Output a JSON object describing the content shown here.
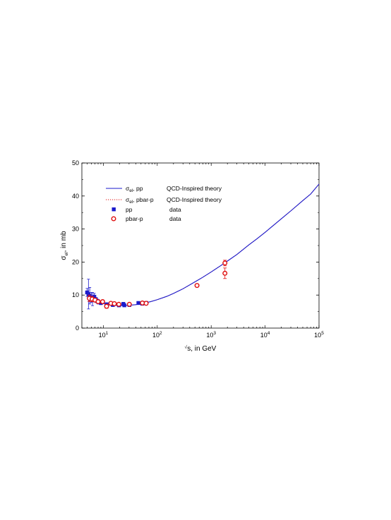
{
  "colors": {
    "pp": "#1a1acc",
    "pbarp": "#e01010",
    "axis": "#000000"
  },
  "chart_data": {
    "type": "scatter",
    "title": "",
    "xscale": "log",
    "xlim": [
      4,
      100000
    ],
    "ylim": [
      0,
      50
    ],
    "yticks": [
      0,
      10,
      20,
      30,
      40,
      50
    ],
    "xticks": [
      {
        "value": 10,
        "base": "10",
        "exp": "1"
      },
      {
        "value": 100,
        "base": "10",
        "exp": "2"
      },
      {
        "value": 1000,
        "base": "10",
        "exp": "3"
      },
      {
        "value": 10000,
        "base": "10",
        "exp": "4"
      },
      {
        "value": 100000,
        "base": "10",
        "exp": "5"
      }
    ],
    "xlabel": {
      "root": "√",
      "main": "s, in GeV"
    },
    "ylabel": {
      "sigma": "σ",
      "sub": "el",
      "rest": ", in mb"
    },
    "legend": {
      "placement": "upper-left",
      "entries": [
        {
          "sigma": "σ",
          "sub": "el",
          "label": ",  pp",
          "desc": "QCD-Inspired theory",
          "style": "solid-line",
          "color_key": "pp"
        },
        {
          "sigma": "σ",
          "sub": "el",
          "label": ",  pbar-p",
          "desc": "QCD-Inspired theory",
          "style": "dotted-line",
          "color_key": "pbarp"
        },
        {
          "sigma": "",
          "sub": "",
          "label": "pp",
          "desc": "data",
          "style": "square",
          "color_key": "pp"
        },
        {
          "sigma": "",
          "sub": "",
          "label": "pbar-p",
          "desc": "data",
          "style": "circle",
          "color_key": "pbarp"
        }
      ]
    },
    "theory_pp": {
      "x": [
        5,
        6,
        7,
        8,
        10,
        13,
        17,
        22,
        30,
        40,
        55,
        75,
        100,
        150,
        200,
        300,
        500,
        700,
        1000,
        1500,
        2000,
        3000,
        5000,
        7000,
        10000,
        15000,
        20000,
        30000,
        50000,
        70000,
        100000
      ],
      "y": [
        9.8,
        8.9,
        8.3,
        7.9,
        7.4,
        7.0,
        6.85,
        6.8,
        6.9,
        7.1,
        7.5,
        8.0,
        8.6,
        9.6,
        10.5,
        11.9,
        14.0,
        15.4,
        17.0,
        18.9,
        20.3,
        22.3,
        25.2,
        27.0,
        29.0,
        31.4,
        33.1,
        35.5,
        38.6,
        40.6,
        43.6
      ]
    },
    "theory_pbarp": {
      "x": [
        5,
        6,
        7,
        8,
        10,
        13,
        17,
        22,
        30,
        40,
        55,
        75,
        100,
        150,
        200,
        300,
        500,
        700,
        1000,
        1500,
        2000,
        3000,
        5000,
        7000,
        10000,
        15000,
        20000,
        30000,
        50000,
        70000,
        100000
      ],
      "y": [
        10.3,
        9.3,
        8.6,
        8.1,
        7.5,
        7.1,
        6.9,
        6.85,
        6.9,
        7.1,
        7.5,
        8.0,
        8.6,
        9.6,
        10.5,
        11.9,
        14.0,
        15.4,
        17.0,
        18.9,
        20.3,
        22.3,
        25.2,
        27.0,
        29.0,
        31.4,
        33.1,
        35.5,
        38.6,
        40.6,
        43.6
      ]
    },
    "data_pp": [
      {
        "x": 5.0,
        "y": 10.8,
        "err": 1.2
      },
      {
        "x": 5.3,
        "y": 10.3,
        "err": 4.5
      },
      {
        "x": 5.6,
        "y": 9.8,
        "err": 2.5
      },
      {
        "x": 6.0,
        "y": 9.3,
        "err": 1.5
      },
      {
        "x": 6.3,
        "y": 8.8,
        "err": 2.0
      },
      {
        "x": 6.8,
        "y": 9.5,
        "err": 1.0
      },
      {
        "x": 7.4,
        "y": 8.5,
        "err": 0.8
      },
      {
        "x": 8.0,
        "y": 8.0,
        "err": 0.7
      },
      {
        "x": 9.0,
        "y": 7.6,
        "err": 0.5
      },
      {
        "x": 11.5,
        "y": 7.2,
        "err": 0.4
      },
      {
        "x": 15.0,
        "y": 7.0,
        "err": 0.3
      },
      {
        "x": 19.5,
        "y": 6.9,
        "err": 0.3
      },
      {
        "x": 23.5,
        "y": 7.3,
        "err": 0.5
      },
      {
        "x": 24.5,
        "y": 6.9,
        "err": 0.3
      },
      {
        "x": 30.5,
        "y": 7.0,
        "err": 0.3
      },
      {
        "x": 44.7,
        "y": 7.6,
        "err": 0.3
      },
      {
        "x": 52.8,
        "y": 7.4,
        "err": 0.3
      },
      {
        "x": 62.5,
        "y": 7.6,
        "err": 0.3
      }
    ],
    "data_pbarp": [
      {
        "x": 5.5,
        "y": 9.0,
        "err": 1.0
      },
      {
        "x": 6.2,
        "y": 8.8,
        "err": 0.8
      },
      {
        "x": 7.0,
        "y": 8.5,
        "err": 0.6
      },
      {
        "x": 8.0,
        "y": 8.0,
        "err": 0.5
      },
      {
        "x": 9.7,
        "y": 8.0,
        "err": 0.5
      },
      {
        "x": 11.5,
        "y": 6.6,
        "err": 0.6
      },
      {
        "x": 13.8,
        "y": 7.5,
        "err": 0.4
      },
      {
        "x": 16.0,
        "y": 7.4,
        "err": 0.4
      },
      {
        "x": 19.4,
        "y": 7.2,
        "err": 0.3
      },
      {
        "x": 30.4,
        "y": 7.2,
        "err": 0.3
      },
      {
        "x": 53.0,
        "y": 7.6,
        "err": 0.3
      },
      {
        "x": 62.3,
        "y": 7.5,
        "err": 0.3
      },
      {
        "x": 546,
        "y": 12.9,
        "err": 0.3
      },
      {
        "x": 1800,
        "y": 19.7,
        "err": 0.85
      },
      {
        "x": 1800,
        "y": 16.6,
        "err": 1.6
      }
    ]
  }
}
